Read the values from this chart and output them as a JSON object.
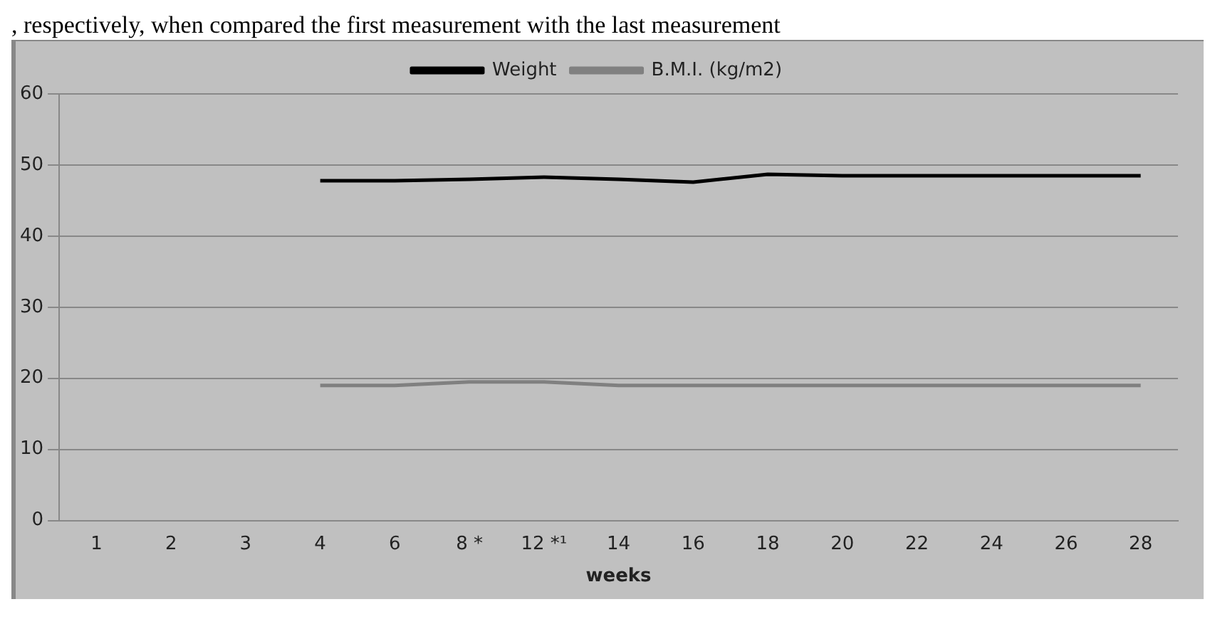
{
  "chart_data": {
    "type": "line",
    "xlabel": "weeks",
    "categories": [
      "1",
      "2",
      "3",
      "4",
      "6",
      "8 *",
      "12 *¹",
      "14",
      "16",
      "18",
      "20",
      "22",
      "24",
      "26",
      "28"
    ],
    "series": [
      {
        "name": "Weight",
        "color": "#000000",
        "values": [
          null,
          null,
          null,
          47.8,
          47.8,
          48.0,
          48.3,
          48.0,
          47.6,
          48.7,
          48.5,
          48.5,
          48.5,
          48.5,
          48.5
        ]
      },
      {
        "name": "B.M.I. (kg/m2)",
        "color": "#808080",
        "values": [
          null,
          null,
          null,
          19.0,
          19.0,
          19.5,
          19.5,
          19.0,
          19.0,
          19.0,
          19.0,
          19.0,
          19.0,
          19.0,
          19.0
        ]
      }
    ],
    "ylim": [
      0,
      60
    ],
    "yticks": [
      0,
      10,
      20,
      30,
      40,
      50,
      60
    ],
    "grid": "y",
    "legend": "top",
    "marker": "none",
    "line_style": "solid",
    "annotations": [
      ", respectively, when compared the first measurement with the last measurement"
    ]
  }
}
